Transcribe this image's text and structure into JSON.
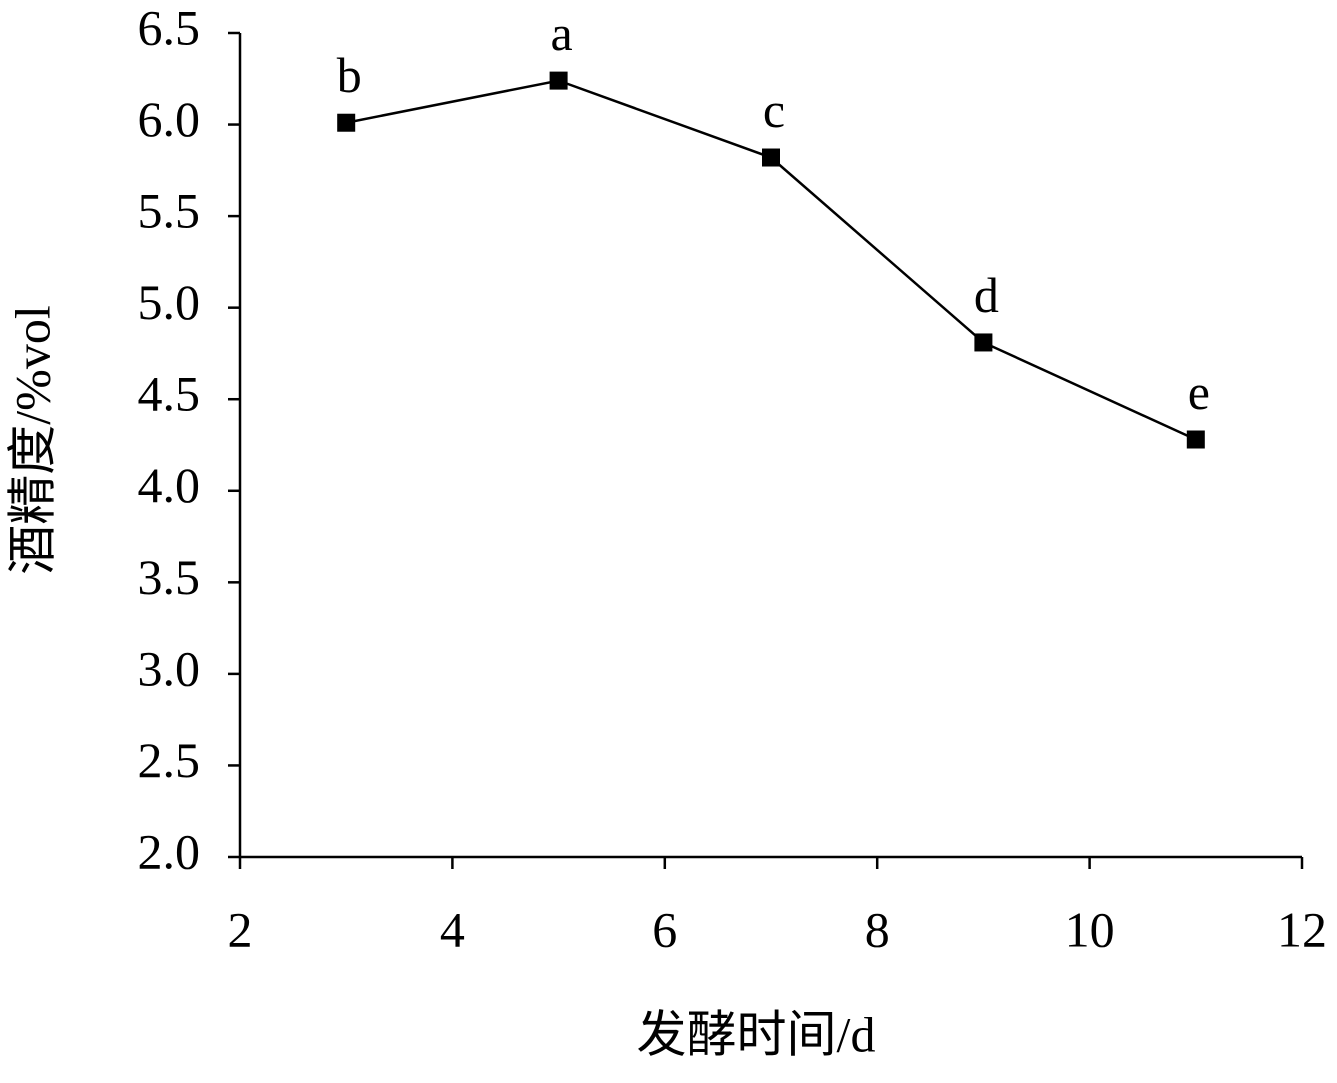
{
  "chart_data": {
    "type": "line",
    "x_label": "发酵时间/d",
    "y_label": "酒精度/%vol",
    "x": [
      3,
      5,
      7,
      9,
      11
    ],
    "series": [
      {
        "color": "#000000",
        "values": [
          6.01,
          6.24,
          5.82,
          4.81,
          4.28
        ],
        "value_labels": [
          "b",
          "a",
          "c",
          "d",
          "e"
        ]
      }
    ],
    "xlim": [
      2,
      12
    ],
    "xticks": [
      2,
      4,
      6,
      8,
      10,
      12
    ],
    "ylim": [
      2,
      6.5
    ],
    "yticks": [
      {
        "value": 2,
        "label": "2.0"
      },
      {
        "value": 2.5,
        "label": "2.5"
      },
      {
        "value": 3,
        "label": "3.0"
      },
      {
        "value": 3.5,
        "label": "3.5"
      },
      {
        "value": 4,
        "label": "4.0"
      },
      {
        "value": 4.5,
        "label": "4.5"
      },
      {
        "value": 5,
        "label": "5.0"
      },
      {
        "value": 5.5,
        "label": "5.5"
      },
      {
        "value": 6,
        "label": "6.0"
      },
      {
        "value": 6.5,
        "label": "6.5"
      }
    ],
    "grid": false
  }
}
